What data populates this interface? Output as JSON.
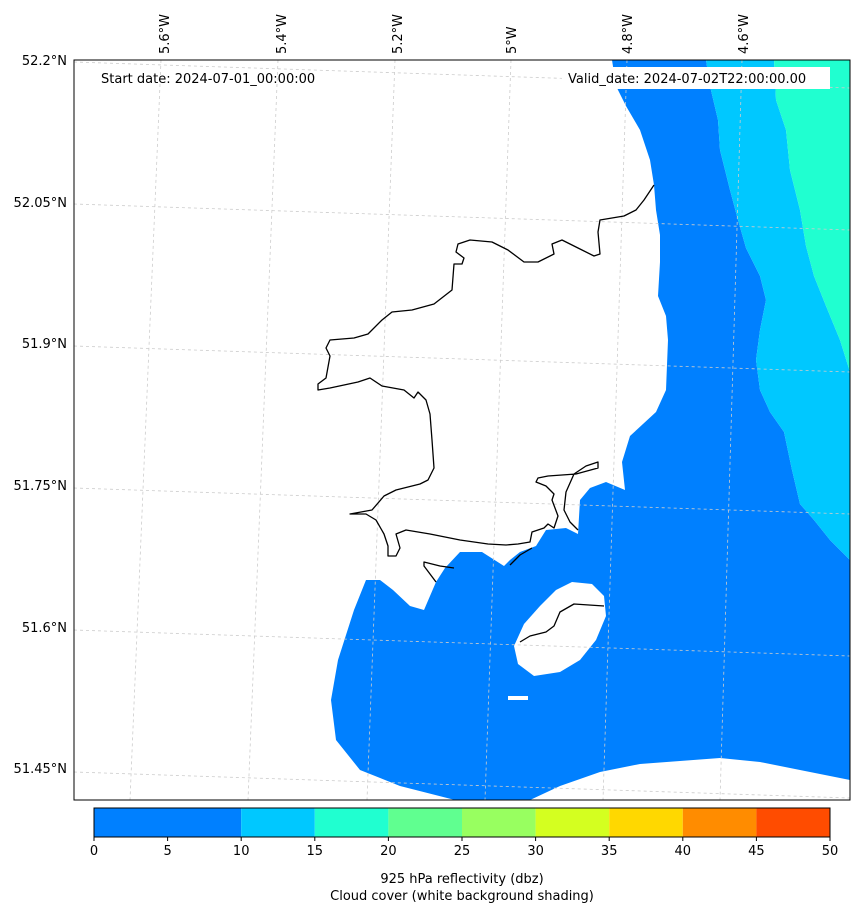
{
  "map": {
    "start_date": "Start date: 2024-07-01_00:00:00",
    "valid_date": "Valid_date: 2024-07-02T22:00:00.00",
    "lon_ticks": [
      "5.6°W",
      "5.4°W",
      "5.2°W",
      "5°W",
      "4.8°W",
      "4.6°W"
    ],
    "lat_ticks": [
      "52.2°N",
      "52.05°N",
      "51.9°N",
      "51.75°N",
      "51.6°N",
      "51.45°N"
    ]
  },
  "colorbar": {
    "ticks": [
      "0",
      "5",
      "10",
      "15",
      "20",
      "25",
      "30",
      "35",
      "40",
      "45",
      "50"
    ],
    "colors": [
      "#0080ff",
      "#00c8ff",
      "#20ffd0",
      "#60ff90",
      "#98ff60",
      "#d4ff20",
      "#ffd800",
      "#ff8c00",
      "#ff4c00"
    ],
    "label": "925 hPa reflectivity (dbz)",
    "sublabel": "Cloud cover (white background shading)"
  },
  "colors": {
    "refl_0_10": "#0080ff",
    "refl_10_15": "#00c8ff",
    "refl_15_20": "#20ffd0",
    "coastline": "#000000",
    "gridline": "#cccccc"
  }
}
